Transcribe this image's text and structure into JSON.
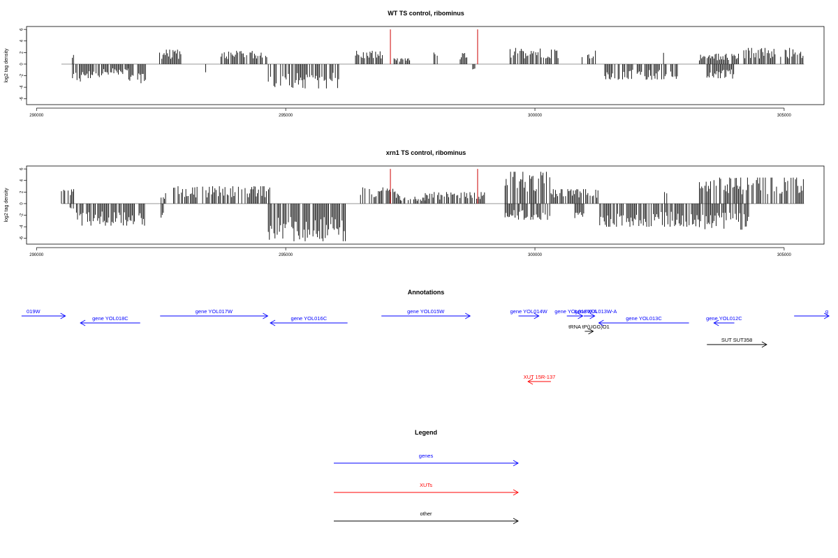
{
  "chart_data": [
    {
      "type": "bar",
      "title": "WT TS control, ribominus",
      "ylabel": "log2 tag density",
      "xlim": [
        289800,
        305800
      ],
      "ylim": [
        -7,
        6.5
      ],
      "x_ticks": [
        290000,
        295000,
        300000,
        305000
      ],
      "y_ticks": [
        -6,
        -4,
        -2,
        0,
        2,
        4,
        6
      ],
      "baseline_range": [
        290500,
        305400
      ],
      "grid": false,
      "series": [
        {
          "color": "#000000",
          "segments": [
            {
              "start": 290720,
              "end": 290760,
              "value": 2.0,
              "sign": "pos"
            },
            {
              "start": 290700,
              "end": 291350,
              "value": 3.0,
              "sign": "neg"
            },
            {
              "start": 291350,
              "end": 291850,
              "value": 1.8,
              "sign": "neg"
            },
            {
              "start": 291850,
              "end": 292200,
              "value": 3.3,
              "sign": "neg"
            },
            {
              "start": 292470,
              "end": 292900,
              "value": 2.5,
              "sign": "pos"
            },
            {
              "start": 293350,
              "end": 293400,
              "value": 1.5,
              "sign": "neg"
            },
            {
              "start": 293700,
              "end": 294650,
              "value": 2.3,
              "sign": "pos"
            },
            {
              "start": 294650,
              "end": 296100,
              "value": 4.2,
              "sign": "neg"
            },
            {
              "start": 296400,
              "end": 296950,
              "value": 2.3,
              "sign": "pos"
            },
            {
              "start": 297150,
              "end": 297500,
              "value": 1.0,
              "sign": "pos"
            },
            {
              "start": 297950,
              "end": 298050,
              "value": 2.0,
              "sign": "pos"
            },
            {
              "start": 298500,
              "end": 298650,
              "value": 2.0,
              "sign": "pos"
            },
            {
              "start": 298750,
              "end": 298800,
              "value": 0.9,
              "sign": "neg"
            },
            {
              "start": 299500,
              "end": 300500,
              "value": 2.8,
              "sign": "pos"
            },
            {
              "start": 300900,
              "end": 301250,
              "value": 2.5,
              "sign": "pos"
            },
            {
              "start": 301400,
              "end": 302900,
              "value": 2.7,
              "sign": "neg"
            },
            {
              "start": 302580,
              "end": 302620,
              "value": 2.2,
              "sign": "pos"
            },
            {
              "start": 303300,
              "end": 304100,
              "value": 1.8,
              "sign": "pos"
            },
            {
              "start": 303450,
              "end": 304000,
              "value": 2.5,
              "sign": "neg"
            },
            {
              "start": 304100,
              "end": 305400,
              "value": 2.8,
              "sign": "pos"
            }
          ]
        },
        {
          "color": "#cc0000",
          "spikes": [
            {
              "x": 297100,
              "y": 6.0
            },
            {
              "x": 298850,
              "y": 6.0
            }
          ]
        }
      ]
    },
    {
      "type": "bar",
      "title": "xrn1 TS control, ribominus",
      "ylabel": "log2 tag density",
      "xlim": [
        289800,
        305800
      ],
      "ylim": [
        -7,
        6.5
      ],
      "x_ticks": [
        290000,
        295000,
        300000,
        305000
      ],
      "y_ticks": [
        -6,
        -4,
        -2,
        0,
        2,
        4,
        6
      ],
      "baseline_range": [
        290500,
        305400
      ],
      "grid": false,
      "series": [
        {
          "color": "#000000",
          "segments": [
            {
              "start": 290500,
              "end": 290750,
              "value": 2.5,
              "sign": "pos"
            },
            {
              "start": 290650,
              "end": 290750,
              "value": 1.5,
              "sign": "neg"
            },
            {
              "start": 290800,
              "end": 292200,
              "value": 3.8,
              "sign": "neg"
            },
            {
              "start": 292500,
              "end": 292600,
              "value": 1.8,
              "sign": "pos"
            },
            {
              "start": 292500,
              "end": 292600,
              "value": 2.5,
              "sign": "neg"
            },
            {
              "start": 292750,
              "end": 294700,
              "value": 3.0,
              "sign": "pos"
            },
            {
              "start": 294650,
              "end": 296200,
              "value": 6.5,
              "sign": "neg"
            },
            {
              "start": 296500,
              "end": 297300,
              "value": 2.8,
              "sign": "pos"
            },
            {
              "start": 297300,
              "end": 297800,
              "value": 1.2,
              "sign": "pos"
            },
            {
              "start": 297800,
              "end": 299000,
              "value": 2.0,
              "sign": "pos"
            },
            {
              "start": 299400,
              "end": 300300,
              "value": 5.5,
              "sign": "pos"
            },
            {
              "start": 299400,
              "end": 300300,
              "value": 2.8,
              "sign": "neg"
            },
            {
              "start": 300300,
              "end": 301300,
              "value": 2.5,
              "sign": "pos"
            },
            {
              "start": 300800,
              "end": 301000,
              "value": 2.5,
              "sign": "neg"
            },
            {
              "start": 301300,
              "end": 303300,
              "value": 4.0,
              "sign": "neg"
            },
            {
              "start": 302600,
              "end": 302650,
              "value": 2.0,
              "sign": "pos"
            },
            {
              "start": 303300,
              "end": 304300,
              "value": 4.5,
              "sign": "neg"
            },
            {
              "start": 303300,
              "end": 305400,
              "value": 4.5,
              "sign": "pos"
            }
          ]
        },
        {
          "color": "#cc0000",
          "spikes": [
            {
              "x": 297100,
              "y": 6.0
            },
            {
              "x": 298850,
              "y": 6.0
            }
          ]
        }
      ]
    }
  ],
  "annotations": {
    "title": "Annotations",
    "tracks": [
      {
        "label": "019W",
        "color": "#0000ff",
        "strand": "+",
        "start": 289700,
        "end": 290580,
        "row": 0,
        "label_align": "start",
        "label_x": 289700
      },
      {
        "label": "gene YOL018C",
        "color": "#0000ff",
        "strand": "-",
        "start": 290880,
        "end": 292080,
        "row": 1
      },
      {
        "label": "gene YOL017W",
        "color": "#0000ff",
        "strand": "+",
        "start": 292480,
        "end": 294640,
        "row": 0
      },
      {
        "label": "gene YOL016C",
        "color": "#0000ff",
        "strand": "-",
        "start": 294690,
        "end": 296240,
        "row": 1
      },
      {
        "label": "gene YOL015W",
        "color": "#0000ff",
        "strand": "+",
        "start": 296920,
        "end": 298700,
        "row": 0
      },
      {
        "label": "gene YOL014W",
        "color": "#0000ff",
        "strand": "+",
        "start": 299670,
        "end": 300080,
        "row": 0
      },
      {
        "label": "gene YOL013W-A",
        "color": "#0000ff",
        "strand": "+",
        "start": 300640,
        "end": 300960,
        "row": 0,
        "label_x": 300820
      },
      {
        "label": "gene YOL013W-A",
        "color": "#0000ff",
        "strand": "+",
        "start": 300980,
        "end": 301200,
        "row": 0,
        "label_x": 301220
      },
      {
        "label": "tRNA tP(UGG)O1",
        "color": "#000000",
        "strand": "+",
        "start": 301000,
        "end": 301170,
        "row": 2
      },
      {
        "label": "gene YOL013C",
        "color": "#0000ff",
        "strand": "-",
        "start": 301280,
        "end": 303090,
        "row": 1
      },
      {
        "label": "gene YOL012C",
        "color": "#0000ff",
        "strand": "-",
        "start": 303590,
        "end": 304000,
        "row": 1
      },
      {
        "label": "SUT SUT358",
        "color": "#000000",
        "strand": "+",
        "start": 303450,
        "end": 304650,
        "row": 3
      },
      {
        "label": "g",
        "color": "#0000ff",
        "strand": "+",
        "start": 305200,
        "end": 305900,
        "row": 0,
        "label_align": "end",
        "label_x": 305900
      },
      {
        "label": "XUT 15R-137",
        "color": "#ff0000",
        "strand": "-",
        "start": 299860,
        "end": 300320,
        "row": 4
      }
    ]
  },
  "legend": {
    "title": "Legend",
    "items": [
      {
        "label": "genes",
        "color": "#0000ff"
      },
      {
        "label": "XUTs",
        "color": "#ff0000"
      },
      {
        "label": "other",
        "color": "#000000"
      }
    ]
  }
}
